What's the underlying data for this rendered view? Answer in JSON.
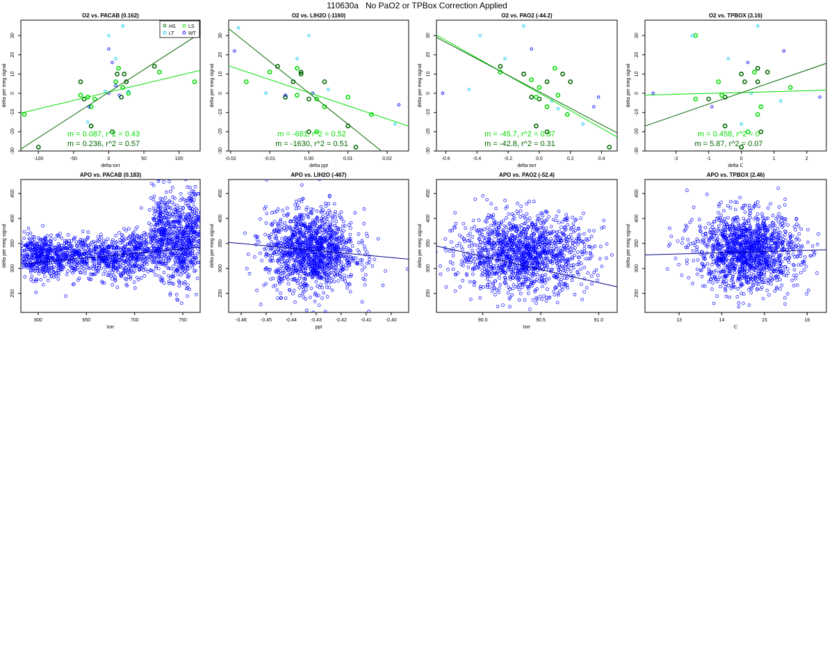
{
  "page_title": "110630a   No PaO2 or TPBox Correction Applied",
  "colors": {
    "HS": "#006400",
    "LS": "#00dd00",
    "LT": "#00c8f0",
    "WT": "#0000ff",
    "fitA": "#00dd00",
    "fitB": "#006400",
    "apo": "#0000ff",
    "apofit": "#00008b"
  },
  "legend": [
    {
      "label": "HS",
      "key": "HS"
    },
    {
      "label": "LS",
      "key": "LS"
    },
    {
      "label": "LT",
      "key": "LT"
    },
    {
      "label": "WT",
      "key": "WT"
    }
  ],
  "chart_data": [
    {
      "type": "scatter",
      "title": "O2 vs. PACAB (0.162)",
      "xlabel": "delta torr",
      "ylabel": "delta per meg signal",
      "xlim": [
        -125,
        130
      ],
      "ylim": [
        -30,
        38
      ],
      "xticks": [
        -100,
        -50,
        0,
        50,
        100
      ],
      "yticks": [
        -30,
        -20,
        -10,
        0,
        10,
        20,
        30
      ],
      "legend": true,
      "groups": {
        "HS": [
          [
            -100,
            -28
          ],
          [
            -25,
            -17
          ],
          [
            -35,
            -3
          ],
          [
            5,
            -20
          ],
          [
            12,
            10
          ],
          [
            22,
            10
          ],
          [
            25,
            6
          ],
          [
            18,
            -2
          ],
          [
            65,
            14
          ],
          [
            -40,
            6
          ]
        ],
        "LS": [
          [
            -120,
            -11
          ],
          [
            -40,
            -1
          ],
          [
            -30,
            -2
          ],
          [
            -25,
            -7
          ],
          [
            -20,
            -3
          ],
          [
            10,
            6
          ],
          [
            14,
            13
          ],
          [
            20,
            3
          ],
          [
            28,
            0
          ],
          [
            72,
            11
          ],
          [
            122,
            6
          ]
        ],
        "LT": [
          [
            -30,
            -15
          ],
          [
            0,
            30
          ],
          [
            10,
            18
          ],
          [
            20,
            35
          ],
          [
            -5,
            1
          ],
          [
            28,
            1
          ]
        ],
        "WT": [
          [
            -28,
            -7
          ],
          [
            0,
            0
          ],
          [
            0,
            23
          ],
          [
            5,
            16
          ],
          [
            10,
            4
          ],
          [
            15,
            -1
          ]
        ]
      },
      "fits": [
        {
          "key": "fitA",
          "slope": 0.087,
          "intercept": 0.6,
          "label": "m = 0.087, r^2 = 0.43"
        },
        {
          "key": "fitB",
          "slope": 0.236,
          "intercept": 0.5,
          "label": "m = 0.236, r^2 = 0.57"
        }
      ]
    },
    {
      "type": "scatter",
      "title": "O2 vs. LIH2O (-1160)",
      "xlabel": "delta ppt",
      "ylabel": "delta per meg signal",
      "xlim": [
        -0.0205,
        0.0255
      ],
      "ylim": [
        -30,
        38
      ],
      "xticks": [
        -0.02,
        -0.01,
        0.0,
        0.01,
        0.02
      ],
      "yticks": [
        -30,
        -20,
        -10,
        0,
        10,
        20,
        30
      ],
      "tick_labels": [
        "-0.02",
        "-0.01",
        "0.00",
        "0.01",
        "0.02"
      ],
      "legend": false,
      "groups": {
        "HS": [
          [
            -0.008,
            14
          ],
          [
            -0.006,
            -2
          ],
          [
            -0.004,
            6
          ],
          [
            -0.002,
            10
          ],
          [
            -0.002,
            11
          ],
          [
            0,
            -3
          ],
          [
            0.004,
            6
          ],
          [
            0.01,
            -17
          ],
          [
            0.012,
            -28
          ],
          [
            0,
            -20
          ]
        ],
        "LS": [
          [
            -0.016,
            6
          ],
          [
            -0.01,
            11
          ],
          [
            -0.003,
            -1
          ],
          [
            -0.003,
            13
          ],
          [
            0.002,
            -3
          ],
          [
            0.004,
            -7
          ],
          [
            0.01,
            -2
          ],
          [
            0.016,
            -11
          ],
          [
            0.002,
            -20
          ]
        ],
        "LT": [
          [
            -0.018,
            34
          ],
          [
            -0.011,
            0
          ],
          [
            0,
            30
          ],
          [
            -0.003,
            18
          ],
          [
            0.005,
            2
          ],
          [
            0.022,
            -16
          ]
        ],
        "WT": [
          [
            -0.019,
            22
          ],
          [
            -0.006,
            -1
          ],
          [
            0.001,
            0
          ],
          [
            0.023,
            -6
          ]
        ]
      },
      "fits": [
        {
          "key": "fitA",
          "slope": -681,
          "intercept": 0.3,
          "label": "m = -681, r^2 = 0.52"
        },
        {
          "key": "fitB",
          "slope": -1630,
          "intercept": 0.2,
          "label": "m = -1630, r^2 = 0.51"
        }
      ]
    },
    {
      "type": "scatter",
      "title": "O2 vs. PAO2 (-44.2)",
      "xlabel": "delta torr",
      "ylabel": "delta per meg signal",
      "xlim": [
        -0.66,
        0.5
      ],
      "ylim": [
        -30,
        38
      ],
      "xticks": [
        -0.6,
        -0.4,
        -0.2,
        0.0,
        0.2,
        0.4
      ],
      "yticks": [
        -30,
        -20,
        -10,
        0,
        10,
        20,
        30
      ],
      "tick_labels": [
        "-0.6",
        "-0.4",
        "-0.2",
        "0.0",
        "0.2",
        "0.4"
      ],
      "legend": false,
      "groups": {
        "HS": [
          [
            -0.25,
            14
          ],
          [
            -0.1,
            10
          ],
          [
            -0.05,
            -2
          ],
          [
            0,
            -3
          ],
          [
            0.05,
            6
          ],
          [
            0.15,
            10
          ],
          [
            0.2,
            6
          ],
          [
            -0.02,
            -17
          ],
          [
            0.05,
            -20
          ],
          [
            0.45,
            -28
          ]
        ],
        "LS": [
          [
            -0.25,
            11
          ],
          [
            -0.05,
            7
          ],
          [
            0,
            3
          ],
          [
            0.05,
            -7
          ],
          [
            0.1,
            13
          ],
          [
            0.12,
            -1
          ],
          [
            0.18,
            -11
          ],
          [
            -0.02,
            -2
          ]
        ],
        "LT": [
          [
            -0.38,
            30
          ],
          [
            -0.22,
            18
          ],
          [
            -0.1,
            35
          ],
          [
            0.08,
            -4
          ],
          [
            0.12,
            -8
          ],
          [
            0.28,
            -16
          ],
          [
            -0.45,
            2
          ]
        ],
        "WT": [
          [
            -0.62,
            0
          ],
          [
            -0.05,
            23
          ],
          [
            0.35,
            -7
          ],
          [
            0.38,
            -2
          ]
        ]
      },
      "fits": [
        {
          "key": "fitA",
          "slope": -45.7,
          "intercept": 0.1,
          "label": "m = -45.7, r^2 = 0.37"
        },
        {
          "key": "fitB",
          "slope": -42.8,
          "intercept": 0.8,
          "label": "m = -42.8, r^2 = 0.31"
        }
      ]
    },
    {
      "type": "scatter",
      "title": "O2 vs. TPBOX (3.16)",
      "xlabel": "delta C",
      "ylabel": "delta per meg signal",
      "xlim": [
        -2.95,
        2.6
      ],
      "ylim": [
        -30,
        38
      ],
      "xticks": [
        -2,
        -1,
        0,
        1,
        2
      ],
      "yticks": [
        -30,
        -20,
        -10,
        0,
        10,
        20,
        30
      ],
      "legend": false,
      "groups": {
        "HS": [
          [
            -1,
            -3
          ],
          [
            -0.5,
            -2
          ],
          [
            0,
            10
          ],
          [
            0.5,
            6
          ],
          [
            0.5,
            13
          ],
          [
            0.8,
            11
          ],
          [
            0.1,
            6
          ],
          [
            -0.5,
            -17
          ],
          [
            0.6,
            -20
          ],
          [
            0,
            -28
          ]
        ],
        "LS": [
          [
            -1.4,
            -3
          ],
          [
            -0.7,
            6
          ],
          [
            -0.6,
            -1
          ],
          [
            0.4,
            11
          ],
          [
            0.5,
            -11
          ],
          [
            0.6,
            -7
          ],
          [
            1.5,
            3
          ],
          [
            0.2,
            -20
          ],
          [
            -1.4,
            30
          ]
        ],
        "LT": [
          [
            -1.5,
            30
          ],
          [
            -0.4,
            18
          ],
          [
            0,
            -16
          ],
          [
            0.5,
            35
          ],
          [
            0.3,
            0
          ],
          [
            1.2,
            -4
          ]
        ],
        "WT": [
          [
            -2.7,
            0
          ],
          [
            -0.9,
            -7
          ],
          [
            0.2,
            16
          ],
          [
            1.3,
            22
          ],
          [
            2.4,
            -2
          ]
        ]
      },
      "fits": [
        {
          "key": "fitA",
          "slope": 0.458,
          "intercept": 0.4,
          "label": "m = 0.458, r^2 = 0"
        },
        {
          "key": "fitB",
          "slope": 5.87,
          "intercept": 0.3,
          "label": "m = 5.87, r^2 = 0.07"
        }
      ]
    },
    {
      "type": "scatter",
      "title": "APO vs. PACAB (0.183)",
      "xlabel": "torr",
      "ylabel": "delta per meg signal",
      "xlim": [
        582,
        768
      ],
      "ylim": [
        212,
        478
      ],
      "xticks": [
        600,
        650,
        700,
        750
      ],
      "yticks": [
        250,
        300,
        350,
        400,
        450
      ],
      "cloud": {
        "clusters": [
          [
            595,
            8,
            330,
            20,
            160
          ],
          [
            610,
            12,
            320,
            20,
            240
          ],
          [
            640,
            20,
            325,
            20,
            320
          ],
          [
            675,
            14,
            320,
            22,
            280
          ],
          [
            705,
            10,
            330,
            22,
            220
          ],
          [
            728,
            7,
            370,
            40,
            320
          ],
          [
            747,
            6,
            345,
            45,
            280
          ],
          [
            760,
            5,
            380,
            45,
            220
          ]
        ]
      },
      "fits": [
        {
          "key": "apofit",
          "slope": 0.183,
          "intercept": 202
        }
      ]
    },
    {
      "type": "scatter",
      "title": "APO vs. LIH2O (-467)",
      "xlabel": "ppt",
      "ylabel": "delta per meg signal",
      "xlim": [
        -0.465,
        -0.393
      ],
      "ylim": [
        212,
        478
      ],
      "xticks": [
        -0.46,
        -0.45,
        -0.44,
        -0.43,
        -0.42,
        -0.41,
        -0.4
      ],
      "tick_labels": [
        "-0.46",
        "-0.45",
        "-0.44",
        "-0.43",
        "-0.42",
        "-0.41",
        "-0.40"
      ],
      "yticks": [
        250,
        300,
        350,
        400,
        450
      ],
      "cloud": {
        "clusters": [
          [
            -0.432,
            0.009,
            335,
            40,
            1300
          ]
        ]
      },
      "fits": [
        {
          "key": "apofit",
          "slope": -467,
          "intercept": 135
        }
      ]
    },
    {
      "type": "scatter",
      "title": "APO vs. PAO2 (-52.4)",
      "xlabel": "torr",
      "ylabel": "delta per meg signal",
      "xlim": [
        89.6,
        91.16
      ],
      "ylim": [
        212,
        478
      ],
      "xticks": [
        90.0,
        90.5,
        91.0
      ],
      "tick_labels": [
        "90.0",
        "90.5",
        "91.0"
      ],
      "yticks": [
        250,
        300,
        350,
        400,
        450
      ],
      "cloud": {
        "clusters": [
          [
            90.35,
            0.28,
            330,
            38,
            1400
          ]
        ]
      },
      "fits": [
        {
          "key": "apofit",
          "slope": -52.4,
          "intercept": 5040
        }
      ]
    },
    {
      "type": "scatter",
      "title": "APO vs. TPBOX (2.46)",
      "xlabel": "C",
      "ylabel": "delta per meg signal",
      "xlim": [
        12.2,
        16.45
      ],
      "ylim": [
        212,
        478
      ],
      "xticks": [
        13,
        14,
        15,
        16
      ],
      "yticks": [
        250,
        300,
        350,
        400,
        450
      ],
      "cloud": {
        "clusters": [
          [
            14.6,
            0.6,
            335,
            38,
            1400
          ]
        ]
      },
      "fits": [
        {
          "key": "apofit",
          "slope": 2.46,
          "intercept": 297
        }
      ]
    }
  ]
}
